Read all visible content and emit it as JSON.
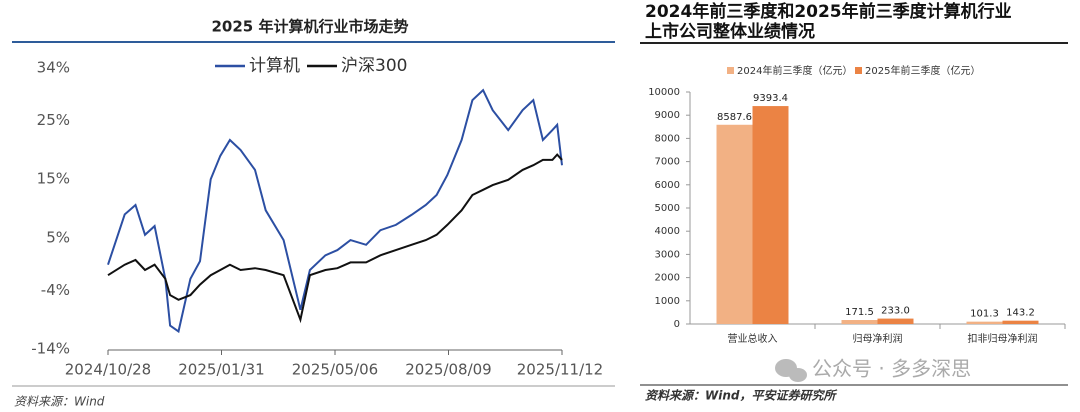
{
  "chart_data": [
    {
      "type": "line",
      "title": "2025 年计算机行业市场走势",
      "source": "资料来源：Wind",
      "x": [
        "2024/10/28",
        "2024/11/11",
        "2024/11/20",
        "2024/11/28",
        "2024/12/06",
        "2024/12/15",
        "2024/12/19",
        "2024/12/26",
        "2025/01/05",
        "2025/01/13",
        "2025/01/22",
        "2025/01/30",
        "2025/02/07",
        "2025/02/16",
        "2025/02/28",
        "2025/03/09",
        "2025/03/24",
        "2025/04/07",
        "2025/04/15",
        "2025/04/28",
        "2025/05/08",
        "2025/05/19",
        "2025/06/01",
        "2025/06/13",
        "2025/06/26",
        "2025/07/09",
        "2025/07/21",
        "2025/07/30",
        "2025/08/08",
        "2025/08/20",
        "2025/08/29",
        "2025/09/07",
        "2025/09/15",
        "2025/09/28",
        "2025/10/10",
        "2025/10/19",
        "2025/10/27",
        "2025/11/04",
        "2025/11/08",
        "2025/11/12"
      ],
      "series": [
        {
          "name": "计算机",
          "color": "#2c4fa3",
          "values": [
            0.4,
            9,
            10.6,
            5.5,
            7,
            -2,
            -10,
            -11,
            -2,
            1,
            15,
            19,
            21.7,
            20,
            16.6,
            9.7,
            4.6,
            -7.3,
            -0.5,
            2,
            2.9,
            4.6,
            3.8,
            6.3,
            7.2,
            8.9,
            10.6,
            12.3,
            15.7,
            21.7,
            28.5,
            30.2,
            26.8,
            23.4,
            26.8,
            28.5,
            21.7,
            23.4,
            24.3,
            17.4
          ]
        },
        {
          "name": "沪深300",
          "color": "#111111",
          "values": [
            -1.4,
            0.4,
            1.2,
            -0.5,
            0.4,
            -2,
            -4.8,
            -5.6,
            -4.8,
            -3,
            -1.4,
            -0.5,
            0.4,
            -0.5,
            -0.2,
            -0.5,
            -1.4,
            -9,
            -1.4,
            -0.5,
            -0.2,
            0.8,
            0.8,
            2,
            2.9,
            3.8,
            4.6,
            5.5,
            7.2,
            9.7,
            12.3,
            13.2,
            14,
            14.9,
            16.6,
            17.4,
            18.3,
            18.3,
            19.2,
            18.3
          ]
        }
      ],
      "xlim": [
        "2024/10/28",
        "2025/11/12"
      ],
      "xticks": [
        "2024/10/28",
        "2025/01/31",
        "2025/05/06",
        "2025/08/09",
        "2025/11/12"
      ],
      "ylim": [
        -14,
        34
      ],
      "yticks": [
        {
          "value": 34,
          "label": "34%"
        },
        {
          "value": 25,
          "label": "25%"
        },
        {
          "value": 15,
          "label": "15%"
        },
        {
          "value": 5,
          "label": "5%"
        },
        {
          "value": -4,
          "label": "-4%"
        },
        {
          "value": -14,
          "label": "-14%"
        }
      ],
      "legend": "upper center",
      "grid": false
    },
    {
      "type": "bar",
      "title": "2024年前三季度和2025年前三季度计算机行业上市公司整体业绩情况",
      "source": "资料来源：Wind，平安证券研究所",
      "categories": [
        "营业总收入",
        "归母净利润",
        "扣非归母净利润"
      ],
      "series": [
        {
          "name": "2024年前三季度（亿元）",
          "color": "#f2b184",
          "values": [
            8587.6,
            171.5,
            101.3
          ],
          "value_labels": [
            "8587.6",
            "171.5",
            "101.3"
          ]
        },
        {
          "name": "2025年前三季度（亿元）",
          "color": "#eb8344",
          "values": [
            9393.4,
            233.0,
            143.2
          ],
          "value_labels": [
            "9393.4",
            "233.0",
            "143.2"
          ]
        }
      ],
      "ylim": [
        0,
        10000
      ],
      "yticks": [
        0,
        1000,
        2000,
        3000,
        4000,
        5000,
        6000,
        7000,
        8000,
        9000,
        10000
      ],
      "legend": "upper center",
      "grid": false
    }
  ],
  "watermark": "公众号 · 多多深思"
}
